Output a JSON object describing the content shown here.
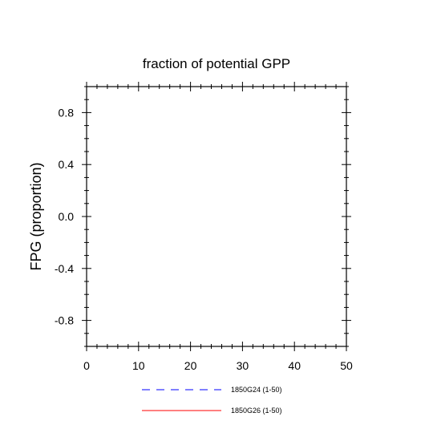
{
  "chart_data": {
    "type": "line",
    "title": "fraction of potential GPP",
    "xlabel": "",
    "ylabel": "FPG  (proportion)",
    "xlim": [
      0,
      50
    ],
    "ylim": [
      -1,
      1
    ],
    "x_ticks": [
      0,
      10,
      20,
      30,
      40,
      50
    ],
    "x_tick_labels": [
      "0",
      "10",
      "20",
      "30",
      "40",
      "50"
    ],
    "y_ticks": [
      -0.8,
      -0.4,
      0.0,
      0.4,
      0.8
    ],
    "y_tick_labels": [
      "-0.8",
      "-0.4",
      "0.0",
      "0.4",
      "0.8"
    ],
    "grid": false,
    "legend_position": "bottom",
    "series": [
      {
        "name": "1850G24 (1-50)",
        "color": "#0000ff",
        "dash": "dashed",
        "x": [],
        "y": []
      },
      {
        "name": "1850G26 (1-50)",
        "color": "#ff0000",
        "dash": "solid",
        "x": [],
        "y": []
      }
    ]
  }
}
